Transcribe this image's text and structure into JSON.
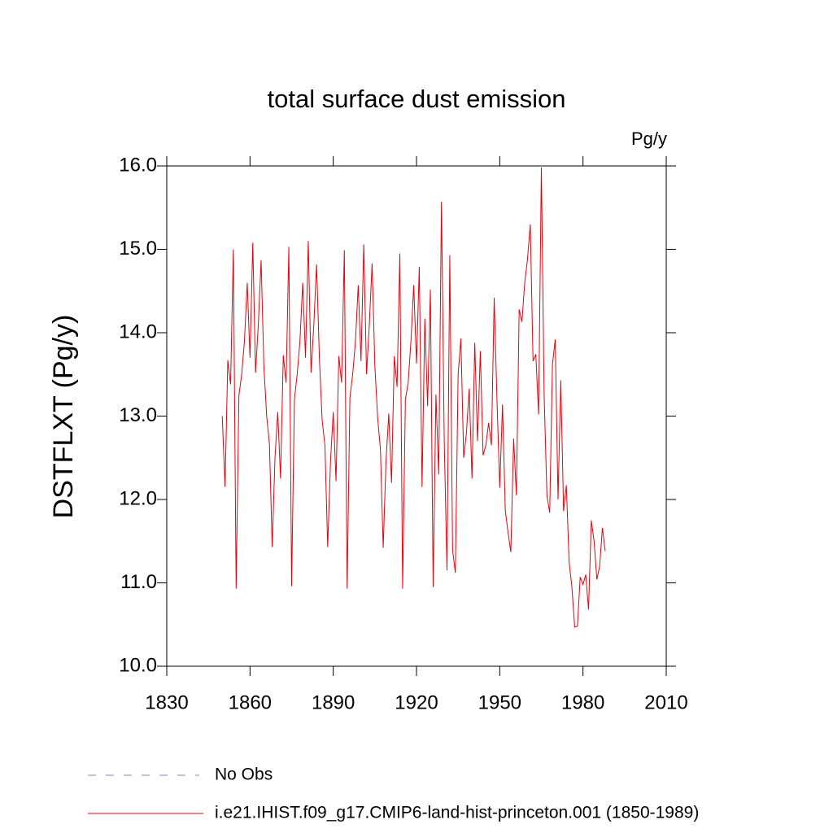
{
  "chart_data": {
    "type": "line",
    "title": "total surface dust emission",
    "units_label": "Pg/y",
    "y_label": "DSTFLXT  (Pg/y)",
    "xlim": [
      1830,
      2010
    ],
    "xticks": [
      1830,
      1860,
      1890,
      1920,
      1950,
      1980,
      2010
    ],
    "ylim": [
      10,
      16
    ],
    "yticks": [
      {
        "value": 10,
        "label": "10.0"
      },
      {
        "value": 11,
        "label": "11.0"
      },
      {
        "value": 12,
        "label": "12.0"
      },
      {
        "value": 13,
        "label": "13.0"
      },
      {
        "value": 14,
        "label": "14.0"
      },
      {
        "value": 15,
        "label": "15.0"
      },
      {
        "value": 16,
        "label": "16.0"
      }
    ],
    "x": [
      1850,
      1851,
      1852,
      1853,
      1854,
      1855,
      1856,
      1857,
      1858,
      1859,
      1860,
      1861,
      1862,
      1863,
      1864,
      1865,
      1866,
      1867,
      1868,
      1869,
      1870,
      1871,
      1872,
      1873,
      1874,
      1875,
      1876,
      1877,
      1878,
      1879,
      1880,
      1881,
      1882,
      1883,
      1884,
      1885,
      1886,
      1887,
      1888,
      1889,
      1890,
      1891,
      1892,
      1893,
      1894,
      1895,
      1896,
      1897,
      1898,
      1899,
      1900,
      1901,
      1902,
      1903,
      1904,
      1905,
      1906,
      1907,
      1908,
      1909,
      1910,
      1911,
      1912,
      1913,
      1914,
      1915,
      1916,
      1917,
      1918,
      1919,
      1920,
      1921,
      1922,
      1923,
      1924,
      1925,
      1926,
      1927,
      1928,
      1929,
      1930,
      1931,
      1932,
      1933,
      1934,
      1935,
      1936,
      1937,
      1938,
      1939,
      1940,
      1941,
      1942,
      1943,
      1944,
      1945,
      1946,
      1947,
      1948,
      1949,
      1950,
      1951,
      1952,
      1953,
      1954,
      1955,
      1956,
      1957,
      1958,
      1959,
      1960,
      1961,
      1962,
      1963,
      1964,
      1965,
      1966,
      1967,
      1968,
      1969,
      1970,
      1971,
      1972,
      1973,
      1974,
      1975,
      1976,
      1977,
      1978,
      1979,
      1980,
      1981,
      1982,
      1983,
      1984,
      1985,
      1986,
      1987,
      1988
    ],
    "series": [
      {
        "name": "i.e21.IHIST.f09_g17.CMIP6-land-hist-princeton.001 (1850-1989)",
        "color": "#e8000b",
        "values": [
          13.0,
          12.15,
          13.67,
          13.38,
          15.0,
          10.93,
          13.25,
          13.5,
          13.9,
          14.6,
          13.7,
          15.08,
          13.52,
          14.1,
          14.87,
          13.6,
          13.0,
          12.67,
          11.43,
          12.5,
          13.05,
          12.25,
          13.73,
          13.4,
          15.03,
          10.96,
          13.2,
          13.5,
          13.9,
          14.6,
          13.7,
          15.1,
          13.52,
          14.1,
          14.82,
          13.7,
          12.95,
          12.65,
          11.43,
          12.45,
          13.05,
          12.22,
          13.72,
          13.4,
          14.99,
          10.93,
          13.22,
          13.5,
          13.9,
          14.57,
          13.66,
          15.06,
          13.5,
          14.1,
          14.83,
          13.6,
          12.98,
          12.6,
          11.42,
          12.45,
          13.03,
          12.2,
          13.72,
          13.35,
          14.95,
          10.93,
          13.2,
          13.4,
          13.9,
          14.57,
          13.63,
          14.79,
          12.15,
          14.17,
          13.12,
          14.52,
          10.95,
          13.26,
          12.3,
          15.57,
          12.7,
          11.15,
          14.93,
          11.4,
          11.12,
          13.5,
          13.93,
          12.5,
          12.8,
          13.33,
          12.25,
          13.88,
          12.7,
          13.78,
          12.53,
          12.65,
          12.92,
          12.65,
          14.42,
          13.2,
          12.14,
          13.14,
          11.87,
          11.6,
          11.37,
          12.73,
          12.05,
          14.28,
          14.13,
          14.6,
          14.88,
          15.3,
          13.66,
          13.74,
          13.02,
          15.98,
          13.25,
          12.05,
          11.84,
          13.62,
          13.92,
          12.0,
          13.43,
          11.86,
          12.17,
          11.25,
          10.95,
          10.47,
          10.48,
          11.07,
          10.98,
          11.1,
          10.68,
          11.75,
          11.5,
          11.04,
          11.2,
          11.66,
          11.38
        ]
      }
    ],
    "extra_legend": [
      {
        "name": "No Obs",
        "color": "#8a7fc0",
        "dash": "10 12"
      }
    ]
  }
}
